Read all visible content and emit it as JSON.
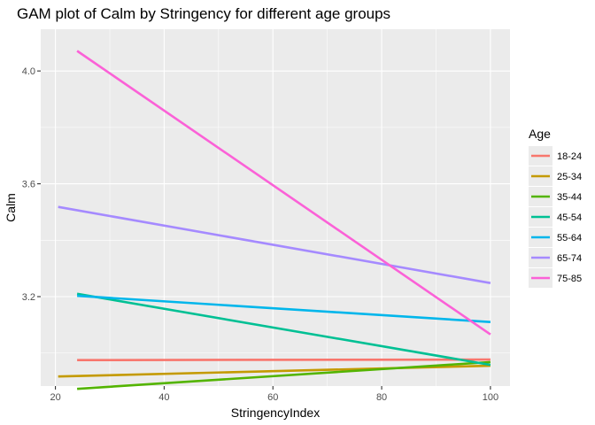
{
  "chart_data": {
    "type": "line",
    "title": "GAM plot of Calm by Stringency for different age groups",
    "xlabel": "StringencyIndex",
    "ylabel": "Calm",
    "xlim": [
      17.3,
      103.6
    ],
    "ylim": [
      2.883,
      4.148
    ],
    "x_ticks": [
      20,
      40,
      60,
      80,
      100
    ],
    "y_ticks": [
      3.2,
      3.6,
      4.0
    ],
    "x_tick_labels": [
      "20",
      "40",
      "60",
      "80",
      "100"
    ],
    "y_tick_labels": [
      "3.2",
      "3.6",
      "4.0"
    ],
    "grid": true,
    "legend": {
      "title": "Age",
      "position": "right"
    },
    "series": [
      {
        "name": "18-24",
        "color": "#F8766D",
        "x": [
          24,
          100
        ],
        "y": [
          2.975,
          2.977
        ]
      },
      {
        "name": "25-34",
        "color": "#C49A00",
        "x": [
          20.5,
          100
        ],
        "y": [
          2.917,
          2.955
        ]
      },
      {
        "name": "35-44",
        "color": "#53B400",
        "x": [
          24,
          100
        ],
        "y": [
          2.873,
          2.968
        ]
      },
      {
        "name": "45-54",
        "color": "#00C094",
        "x": [
          24,
          100
        ],
        "y": [
          3.21,
          2.958
        ]
      },
      {
        "name": "55-64",
        "color": "#00B6EB",
        "x": [
          24,
          100
        ],
        "y": [
          3.203,
          3.11
        ]
      },
      {
        "name": "65-74",
        "color": "#A58AFF",
        "x": [
          20.5,
          100
        ],
        "y": [
          3.518,
          3.248
        ]
      },
      {
        "name": "75-85",
        "color": "#FB61D7",
        "x": [
          24,
          100
        ],
        "y": [
          4.071,
          3.066
        ]
      }
    ]
  }
}
